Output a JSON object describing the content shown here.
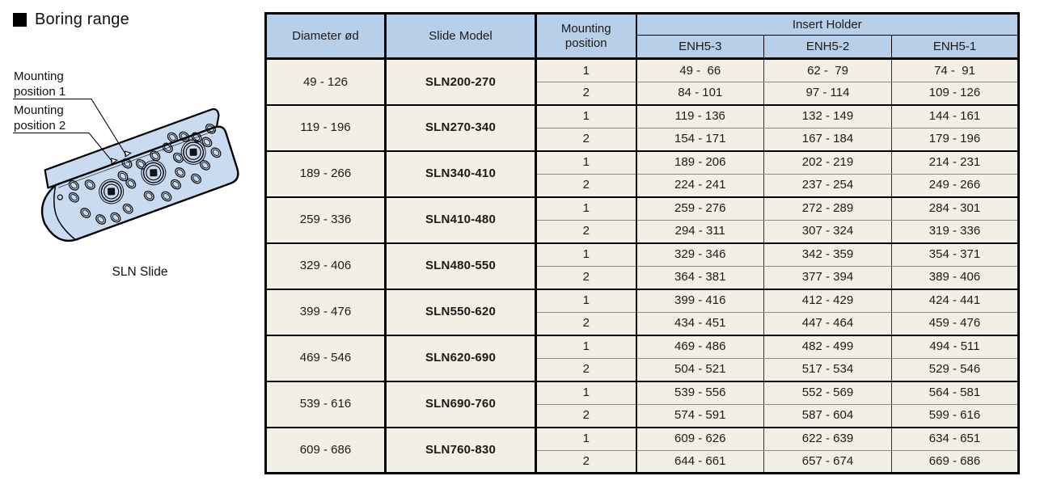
{
  "title": {
    "text": "Boring range"
  },
  "illustration": {
    "caption": "SLN Slide",
    "labels": {
      "pos1_line1": "Mounting",
      "pos1_line2": "position 1",
      "pos2_line1": "Mounting",
      "pos2_line2": "position 2"
    }
  },
  "colors": {
    "header_blue": "#b7cfe9",
    "model_blue": "#d4ebf8",
    "row_cream": "#f2f0e5",
    "block_blue": "#c9dbf1",
    "border_black": "#000000"
  },
  "table": {
    "header": {
      "diameter": "Diameter ød",
      "slide_model": "Slide Model",
      "mounting_position": "Mounting\nposition",
      "insert_holder": "Insert Holder",
      "holders": [
        "ENH5-3",
        "ENH5-2",
        "ENH5-1"
      ]
    },
    "rows": [
      {
        "diameter": "49 - 126",
        "model": "SLN200-270",
        "positions": [
          {
            "pos": "1",
            "values": [
              "49 -  66",
              "62 -  79",
              "74 -  91"
            ]
          },
          {
            "pos": "2",
            "values": [
              "84 - 101",
              "97 - 114",
              "109 - 126"
            ]
          }
        ]
      },
      {
        "diameter": "119 - 196",
        "model": "SLN270-340",
        "positions": [
          {
            "pos": "1",
            "values": [
              "119 - 136",
              "132 - 149",
              "144 - 161"
            ]
          },
          {
            "pos": "2",
            "values": [
              "154 - 171",
              "167 - 184",
              "179 - 196"
            ]
          }
        ]
      },
      {
        "diameter": "189 - 266",
        "model": "SLN340-410",
        "positions": [
          {
            "pos": "1",
            "values": [
              "189 - 206",
              "202 - 219",
              "214 - 231"
            ]
          },
          {
            "pos": "2",
            "values": [
              "224 - 241",
              "237 - 254",
              "249 - 266"
            ]
          }
        ]
      },
      {
        "diameter": "259 - 336",
        "model": "SLN410-480",
        "positions": [
          {
            "pos": "1",
            "values": [
              "259 - 276",
              "272 - 289",
              "284 - 301"
            ]
          },
          {
            "pos": "2",
            "values": [
              "294 - 311",
              "307 - 324",
              "319 - 336"
            ]
          }
        ]
      },
      {
        "diameter": "329 - 406",
        "model": "SLN480-550",
        "positions": [
          {
            "pos": "1",
            "values": [
              "329 - 346",
              "342 - 359",
              "354 - 371"
            ]
          },
          {
            "pos": "2",
            "values": [
              "364 - 381",
              "377 - 394",
              "389 - 406"
            ]
          }
        ]
      },
      {
        "diameter": "399 - 476",
        "model": "SLN550-620",
        "positions": [
          {
            "pos": "1",
            "values": [
              "399 - 416",
              "412 - 429",
              "424 - 441"
            ]
          },
          {
            "pos": "2",
            "values": [
              "434 - 451",
              "447 - 464",
              "459 - 476"
            ]
          }
        ]
      },
      {
        "diameter": "469 - 546",
        "model": "SLN620-690",
        "positions": [
          {
            "pos": "1",
            "values": [
              "469 - 486",
              "482 - 499",
              "494 - 511"
            ]
          },
          {
            "pos": "2",
            "values": [
              "504 - 521",
              "517 - 534",
              "529 - 546"
            ]
          }
        ]
      },
      {
        "diameter": "539 - 616",
        "model": "SLN690-760",
        "positions": [
          {
            "pos": "1",
            "values": [
              "539 - 556",
              "552 - 569",
              "564 - 581"
            ]
          },
          {
            "pos": "2",
            "values": [
              "574 - 591",
              "587 - 604",
              "599 - 616"
            ]
          }
        ]
      },
      {
        "diameter": "609 - 686",
        "model": "SLN760-830",
        "positions": [
          {
            "pos": "1",
            "values": [
              "609 - 626",
              "622 - 639",
              "634 - 651"
            ]
          },
          {
            "pos": "2",
            "values": [
              "644 - 661",
              "657 - 674",
              "669 - 686"
            ]
          }
        ]
      }
    ]
  }
}
